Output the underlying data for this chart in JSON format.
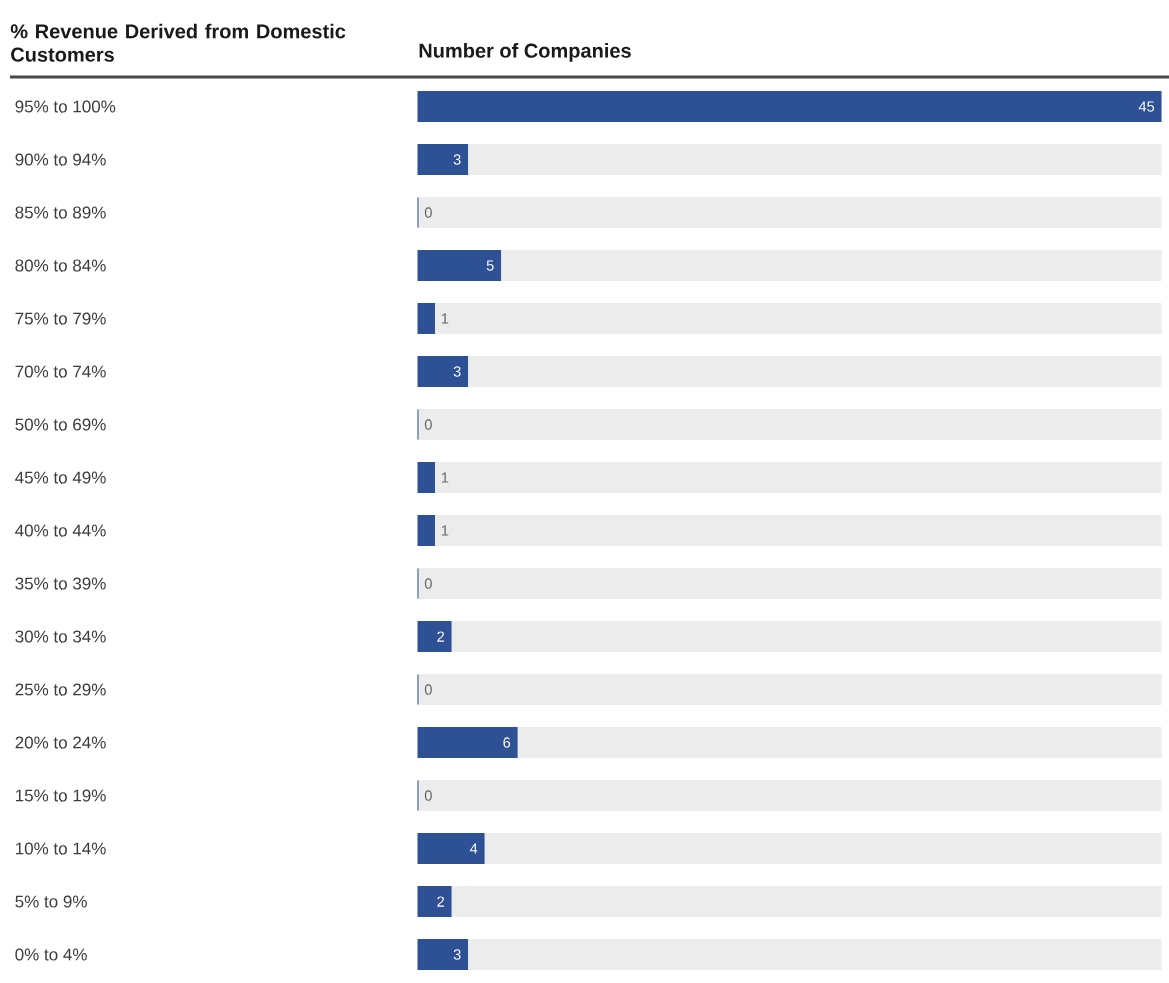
{
  "chart_data": {
    "type": "bar",
    "orientation": "horizontal",
    "ylabel": "% Revenue Derived from Domestic Customers",
    "xlabel": "Number of Companies",
    "categories": [
      "95% to 100%",
      "90% to 94%",
      "85% to 89%",
      "80% to 84%",
      "75% to 79%",
      "70% to 74%",
      "50% to 69%",
      "45% to 49%",
      "40% to 44%",
      "35% to 39%",
      "30% to 34%",
      "25% to 29%",
      "20% to 24%",
      "15% to 19%",
      "10% to 14%",
      "5% to 9%",
      "0% to 4%"
    ],
    "stacked": true,
    "series": [
      {
        "color": "#2d5194",
        "values": [
          45,
          3,
          0,
          5,
          1,
          3,
          0,
          1,
          1,
          0,
          2,
          0,
          6,
          0,
          4,
          2,
          3
        ],
        "value_labels": [
          "45",
          "3",
          "0",
          "5",
          "1",
          "3",
          "0",
          "1",
          "1",
          "0",
          "2",
          "0",
          "6",
          "0",
          "4",
          "2",
          "3"
        ]
      },
      {
        "color": "#ececec",
        "values": [
          null,
          42,
          45,
          40,
          44,
          42,
          45,
          44,
          44,
          45,
          43,
          45,
          39,
          45,
          41,
          43,
          42
        ]
      }
    ],
    "tick_labels": "y"
  }
}
